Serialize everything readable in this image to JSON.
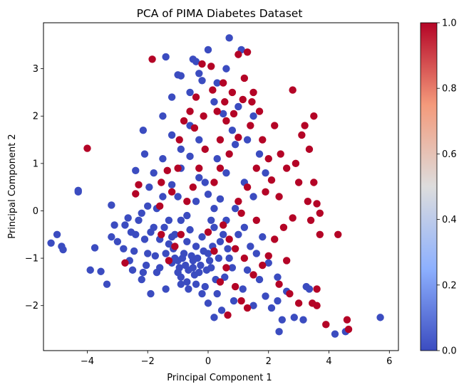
{
  "chart_data": {
    "type": "scatter",
    "title": "PCA of PIMA Diabetes Dataset",
    "xlabel": "Principal Component 1",
    "ylabel": "Principal Component 2",
    "xlim": [
      -5.45,
      6.3
    ],
    "ylim": [
      -2.95,
      3.97
    ],
    "xticks": [
      -4,
      -2,
      0,
      2,
      4,
      6
    ],
    "yticks": [
      -2,
      -1,
      0,
      1,
      2,
      3
    ],
    "grid": false,
    "legend": "none",
    "colormap": "coolwarm",
    "colorbar": {
      "range": [
        0.0,
        1.0
      ],
      "ticks": [
        0.0,
        0.2,
        0.4,
        0.6,
        0.8,
        1.0
      ],
      "tick_labels": [
        "0.0",
        "0.2",
        "0.4",
        "0.6",
        "0.8",
        "1.0"
      ],
      "low_color": "#3b4cc0",
      "mid_color": "#dddddd",
      "high_color": "#b40426"
    },
    "series": [
      {
        "class": 0,
        "color": "#3b4cc0",
        "points": [
          [
            -5.0,
            -0.5
          ],
          [
            -5.2,
            -0.68
          ],
          [
            -4.85,
            -0.75
          ],
          [
            -4.8,
            -0.82
          ],
          [
            -4.3,
            0.43
          ],
          [
            -4.3,
            0.4
          ],
          [
            -3.75,
            -0.78
          ],
          [
            -3.9,
            -1.25
          ],
          [
            -3.55,
            -1.28
          ],
          [
            -3.35,
            -1.55
          ],
          [
            -3.2,
            -0.55
          ],
          [
            -3.2,
            0.12
          ],
          [
            -3.0,
            -0.65
          ],
          [
            -2.75,
            -0.3
          ],
          [
            -2.6,
            -1.05
          ],
          [
            -2.55,
            -0.45
          ],
          [
            -2.45,
            -0.85
          ],
          [
            -2.3,
            -0.2
          ],
          [
            -2.2,
            -1.45
          ],
          [
            -2.15,
            -1.3
          ],
          [
            -2.1,
            -0.6
          ],
          [
            -2.0,
            -0.9
          ],
          [
            -1.95,
            0.5
          ],
          [
            -1.9,
            -1.75
          ],
          [
            -1.75,
            -0.95
          ],
          [
            -1.6,
            -1.2
          ],
          [
            -1.45,
            -0.35
          ],
          [
            -1.3,
            -0.7
          ],
          [
            -1.2,
            -1.1
          ],
          [
            -1.1,
            -0.5
          ],
          [
            -1.0,
            -1.3
          ],
          [
            -0.9,
            -0.2
          ],
          [
            -0.8,
            -0.9
          ],
          [
            -0.7,
            -1.5
          ],
          [
            -0.6,
            -0.4
          ],
          [
            -0.5,
            -1.05
          ],
          [
            -0.4,
            -0.75
          ],
          [
            -0.3,
            -1.3
          ],
          [
            -0.2,
            -0.55
          ],
          [
            -0.1,
            -1.6
          ],
          [
            0.0,
            -0.9
          ],
          [
            0.1,
            -1.2
          ],
          [
            0.2,
            -0.35
          ],
          [
            0.3,
            -1.75
          ],
          [
            0.4,
            -0.65
          ],
          [
            0.55,
            -1.4
          ],
          [
            0.7,
            -1.0
          ],
          [
            0.85,
            -1.9
          ],
          [
            1.0,
            -0.5
          ],
          [
            1.15,
            -1.65
          ],
          [
            1.3,
            -1.25
          ],
          [
            1.5,
            -2.0
          ],
          [
            1.7,
            -1.45
          ],
          [
            1.9,
            -1.8
          ],
          [
            2.1,
            -2.05
          ],
          [
            2.3,
            -1.9
          ],
          [
            2.45,
            -2.3
          ],
          [
            2.35,
            -2.55
          ],
          [
            2.85,
            -2.25
          ],
          [
            3.15,
            -2.3
          ],
          [
            3.25,
            -1.6
          ],
          [
            3.35,
            -1.65
          ],
          [
            4.2,
            -2.6
          ],
          [
            4.55,
            -2.55
          ],
          [
            5.7,
            -2.25
          ],
          [
            -1.3,
            -0.2
          ],
          [
            -1.15,
            -0.8
          ],
          [
            -1.0,
            -1.05
          ],
          [
            -0.95,
            -1.2
          ],
          [
            -0.85,
            -1.0
          ],
          [
            -0.75,
            -1.15
          ],
          [
            -0.65,
            -1.25
          ],
          [
            -0.55,
            -0.95
          ],
          [
            -0.45,
            -1.35
          ],
          [
            -0.35,
            -1.0
          ],
          [
            -0.25,
            -1.15
          ],
          [
            -0.15,
            -0.85
          ],
          [
            -0.05,
            -1.25
          ],
          [
            0.05,
            -1.05
          ],
          [
            0.15,
            -0.75
          ],
          [
            0.25,
            -1.45
          ],
          [
            -1.1,
            -1.0
          ],
          [
            -0.9,
            -1.4
          ],
          [
            -0.7,
            -0.65
          ],
          [
            -0.5,
            -1.2
          ],
          [
            -1.2,
            -0.55
          ],
          [
            -1.4,
            -0.9
          ],
          [
            -1.6,
            -0.6
          ],
          [
            -1.8,
            -0.35
          ],
          [
            -2.0,
            0.1
          ],
          [
            -1.5,
            0.3
          ],
          [
            -1.2,
            0.55
          ],
          [
            -0.9,
            0.9
          ],
          [
            -0.6,
            1.15
          ],
          [
            -0.3,
            0.7
          ],
          [
            0.0,
            0.35
          ],
          [
            0.2,
            0.05
          ],
          [
            0.4,
            0.25
          ],
          [
            0.6,
            -0.2
          ],
          [
            -1.7,
            0.05
          ],
          [
            -2.2,
            -0.05
          ],
          [
            -2.4,
            -0.5
          ],
          [
            -1.9,
            -0.45
          ],
          [
            -0.3,
            1.5
          ],
          [
            -0.6,
            1.8
          ],
          [
            -0.9,
            1.3
          ],
          [
            -1.2,
            1.6
          ],
          [
            -1.5,
            1.1
          ],
          [
            -1.8,
            0.8
          ],
          [
            -2.1,
            1.2
          ],
          [
            -2.4,
            0.85
          ],
          [
            -2.15,
            1.7
          ],
          [
            -1.5,
            2.0
          ],
          [
            -1.2,
            2.4
          ],
          [
            -0.9,
            2.85
          ],
          [
            -0.6,
            2.5
          ],
          [
            -0.3,
            2.9
          ],
          [
            0.0,
            3.4
          ],
          [
            0.3,
            2.7
          ],
          [
            0.6,
            3.0
          ],
          [
            0.7,
            3.65
          ],
          [
            1.1,
            3.4
          ],
          [
            -1.4,
            3.25
          ],
          [
            -1.0,
            2.87
          ],
          [
            -0.4,
            3.15
          ],
          [
            -0.5,
            3.2
          ],
          [
            -0.2,
            2.75
          ],
          [
            0.2,
            2.3
          ],
          [
            0.5,
            2.05
          ],
          [
            0.8,
            1.7
          ],
          [
            1.0,
            2.2
          ],
          [
            1.3,
            1.5
          ],
          [
            1.5,
            2.0
          ],
          [
            1.7,
            1.2
          ],
          [
            1.9,
            0.8
          ],
          [
            0.3,
            1.1
          ],
          [
            0.6,
            0.8
          ],
          [
            0.9,
            1.4
          ],
          [
            1.2,
            0.6
          ],
          [
            1.5,
            0.3
          ],
          [
            0.1,
            -0.2
          ],
          [
            -0.1,
            0.6
          ],
          [
            -0.4,
            0.2
          ],
          [
            -0.7,
            -0.1
          ],
          [
            -1.0,
            0.3
          ],
          [
            0.9,
            0.05
          ],
          [
            1.2,
            -0.35
          ],
          [
            1.6,
            -0.9
          ],
          [
            2.0,
            -1.1
          ],
          [
            2.3,
            -1.4
          ],
          [
            2.6,
            -1.7
          ],
          [
            1.8,
            -0.55
          ],
          [
            1.4,
            -0.75
          ],
          [
            0.35,
            -1.0
          ],
          [
            0.5,
            -0.5
          ],
          [
            0.65,
            -0.8
          ],
          [
            0.8,
            -1.2
          ],
          [
            0.45,
            -2.1
          ],
          [
            0.2,
            -2.25
          ],
          [
            0.0,
            -1.95
          ],
          [
            -0.2,
            -1.75
          ],
          [
            -0.4,
            -1.55
          ],
          [
            -0.65,
            -1.65
          ],
          [
            -0.9,
            -1.55
          ],
          [
            -1.4,
            -1.65
          ],
          [
            -1.7,
            -1.3
          ],
          [
            -2.5,
            -1.25
          ],
          [
            -2.8,
            -0.8
          ],
          [
            -3.1,
            -0.3
          ],
          [
            -2.65,
            -0.15
          ],
          [
            -2.05,
            -1.15
          ]
        ]
      },
      {
        "class": 1,
        "color": "#b40426",
        "points": [
          [
            -4.0,
            1.32
          ],
          [
            -2.75,
            -1.1
          ],
          [
            -2.4,
            0.36
          ],
          [
            -2.3,
            0.55
          ],
          [
            -1.85,
            3.2
          ],
          [
            -1.55,
            -0.5
          ],
          [
            -1.2,
            0.4
          ],
          [
            -1.0,
            0.9
          ],
          [
            -0.8,
            1.9
          ],
          [
            -0.6,
            2.1
          ],
          [
            -0.4,
            2.4
          ],
          [
            -0.2,
            3.1
          ],
          [
            0.1,
            3.05
          ],
          [
            0.3,
            2.1
          ],
          [
            0.4,
            1.5
          ],
          [
            0.5,
            2.7
          ],
          [
            0.6,
            1.9
          ],
          [
            0.8,
            2.5
          ],
          [
            1.0,
            3.3
          ],
          [
            1.3,
            3.35
          ],
          [
            1.2,
            2.8
          ],
          [
            1.5,
            2.5
          ],
          [
            1.7,
            2.1
          ],
          [
            1.8,
            1.5
          ],
          [
            2.0,
            1.1
          ],
          [
            2.2,
            1.8
          ],
          [
            2.4,
            1.2
          ],
          [
            2.6,
            0.9
          ],
          [
            2.8,
            2.55
          ],
          [
            2.9,
            1.0
          ],
          [
            3.0,
            0.6
          ],
          [
            3.1,
            1.6
          ],
          [
            3.2,
            1.8
          ],
          [
            3.35,
            1.3
          ],
          [
            3.5,
            2.0
          ],
          [
            3.5,
            0.6
          ],
          [
            3.3,
            0.2
          ],
          [
            3.6,
            0.15
          ],
          [
            3.7,
            -0.05
          ],
          [
            3.4,
            -0.2
          ],
          [
            3.7,
            -0.5
          ],
          [
            2.8,
            -0.15
          ],
          [
            2.5,
            -0.35
          ],
          [
            2.2,
            -0.6
          ],
          [
            2.0,
            -0.95
          ],
          [
            1.8,
            -1.15
          ],
          [
            1.5,
            -1.35
          ],
          [
            1.2,
            -1.0
          ],
          [
            0.9,
            -0.8
          ],
          [
            0.7,
            -0.6
          ],
          [
            0.5,
            -0.3
          ],
          [
            1.0,
            0.2
          ],
          [
            1.3,
            0.5
          ],
          [
            1.6,
            0.9
          ],
          [
            1.9,
            0.4
          ],
          [
            2.1,
            0.65
          ],
          [
            2.35,
            0.3
          ],
          [
            0.2,
            0.6
          ],
          [
            0.4,
            0.9
          ],
          [
            0.7,
            1.2
          ],
          [
            1.0,
            1.55
          ],
          [
            1.4,
            1.8
          ],
          [
            -0.1,
            1.3
          ],
          [
            -0.3,
            0.9
          ],
          [
            -0.5,
            0.5
          ],
          [
            -0.7,
            0.2
          ],
          [
            -0.9,
            -0.5
          ],
          [
            -1.1,
            -0.75
          ],
          [
            -1.3,
            -1.05
          ],
          [
            0.0,
            -0.45
          ],
          [
            0.2,
            -0.85
          ],
          [
            0.4,
            -1.5
          ],
          [
            0.6,
            -1.2
          ],
          [
            0.9,
            -1.6
          ],
          [
            1.1,
            -1.9
          ],
          [
            1.3,
            -2.05
          ],
          [
            0.65,
            -2.2
          ],
          [
            2.7,
            -1.75
          ],
          [
            3.0,
            -1.95
          ],
          [
            3.45,
            -1.95
          ],
          [
            3.6,
            -2.0
          ],
          [
            3.9,
            -2.4
          ],
          [
            4.6,
            -2.3
          ],
          [
            4.65,
            -2.5
          ],
          [
            3.6,
            -1.65
          ],
          [
            4.3,
            -0.5
          ],
          [
            2.6,
            -1.05
          ],
          [
            2.35,
            -1.55
          ],
          [
            1.6,
            -0.2
          ],
          [
            1.1,
            -0.05
          ],
          [
            -1.6,
            0.1
          ],
          [
            -0.45,
            1.75
          ],
          [
            -0.15,
            2.0
          ],
          [
            0.15,
            2.55
          ],
          [
            0.55,
            2.3
          ],
          [
            0.85,
            2.05
          ],
          [
            1.15,
            2.35
          ],
          [
            1.45,
            2.3
          ],
          [
            -0.95,
            1.5
          ],
          [
            -1.35,
            0.85
          ],
          [
            -1.55,
            0.6
          ]
        ]
      }
    ]
  }
}
